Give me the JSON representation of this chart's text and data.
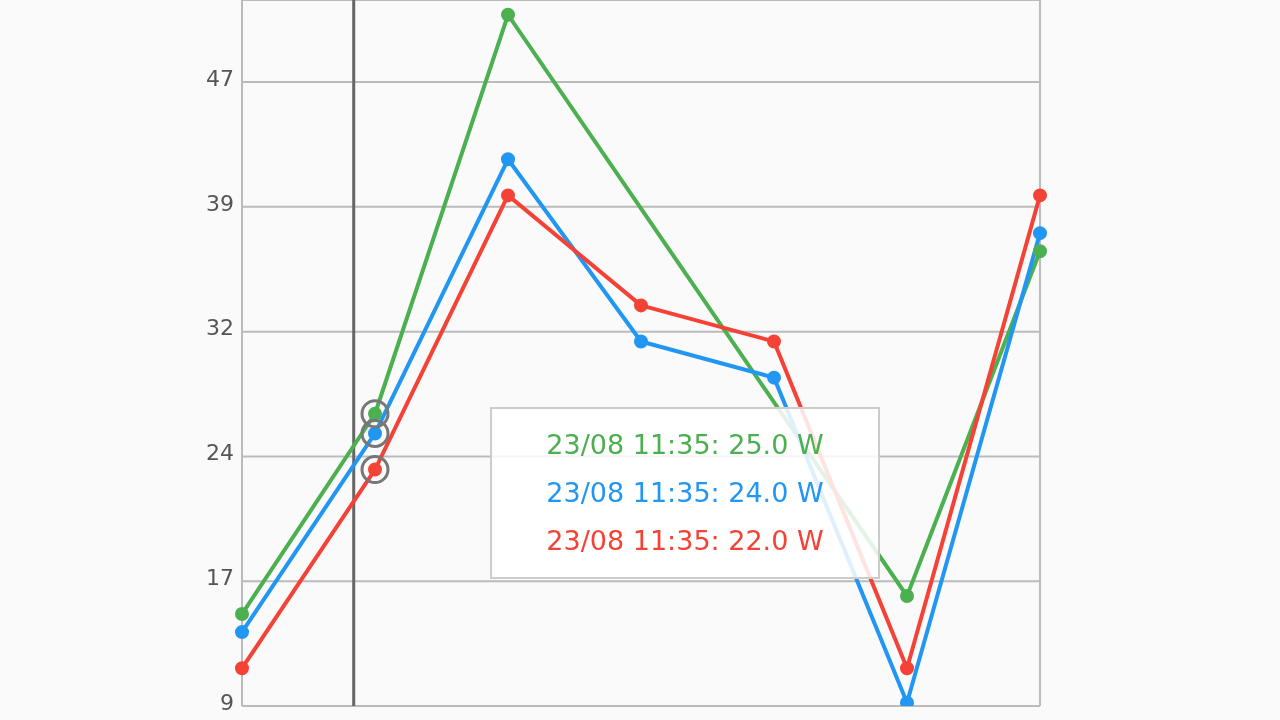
{
  "chart_data": {
    "type": "line",
    "categories": [
      null,
      null,
      null,
      null,
      null,
      null,
      null
    ],
    "ylim": [
      9,
      52
    ],
    "yticks": [
      9,
      {
        "value": 16.6,
        "label": "17"
      },
      {
        "value": 24.2,
        "label": "24"
      },
      {
        "value": 31.8,
        "label": "32"
      },
      {
        "value": 39.4,
        "label": "39"
      },
      47
    ],
    "series": [
      {
        "color": "#4caf50",
        "values": [
          14.6,
          26.8,
          51.1,
          null,
          null,
          15.7,
          36.7
        ]
      },
      {
        "color": "#2196f3",
        "values": [
          13.5,
          25.6,
          42.3,
          31.2,
          29.0,
          9.2,
          37.8
        ]
      },
      {
        "color": "#f44336",
        "values": [
          11.3,
          23.4,
          40.1,
          33.4,
          31.2,
          11.3,
          40.1
        ]
      }
    ],
    "annotations": [
      "23/08 11:35: 25.0 W",
      "23/08 11:35: 24.0 W",
      "23/08 11:35: 22.0 W"
    ],
    "grid": true,
    "tick_labels": "y",
    "marker": "circle",
    "line_style": "solid"
  }
}
